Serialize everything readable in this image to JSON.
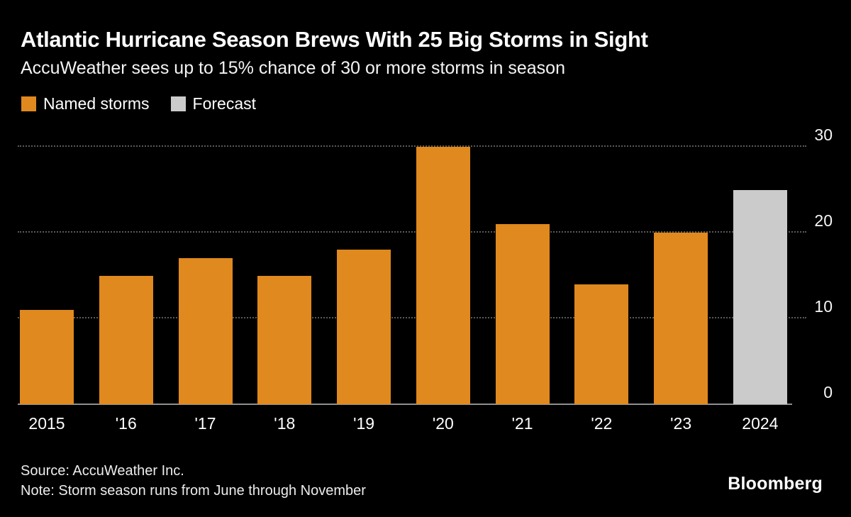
{
  "header": {
    "title": "Atlantic Hurricane Season Brews With 25 Big Storms in Sight",
    "subtitle": "AccuWeather sees up to 15% chance of 30 or more storms in season"
  },
  "legend": {
    "items": [
      {
        "label": "Named storms",
        "color": "#E0891E"
      },
      {
        "label": "Forecast",
        "color": "#CBCBCB"
      }
    ]
  },
  "chart_data": {
    "type": "bar",
    "title": "Atlantic Hurricane Season Brews With 25 Big Storms in Sight",
    "subtitle": "AccuWeather sees up to 15% chance of 30 or more storms in season",
    "xlabel": "",
    "ylabel": "",
    "categories": [
      "2015",
      "'16",
      "'17",
      "'18",
      "'19",
      "'20",
      "'21",
      "'22",
      "'23",
      "2024"
    ],
    "values": [
      11,
      15,
      17,
      15,
      18,
      30,
      21,
      14,
      20,
      25
    ],
    "bar_series": [
      "named",
      "named",
      "named",
      "named",
      "named",
      "named",
      "named",
      "named",
      "named",
      "forecast"
    ],
    "series_names": {
      "named": "Named storms",
      "forecast": "Forecast"
    },
    "colors": {
      "named": "#E0891E",
      "forecast": "#CBCBCB"
    },
    "ylim": [
      0,
      30
    ],
    "yticks": [
      0,
      10,
      20,
      30
    ],
    "grid": "dotted horizontal",
    "legend_position": "top-left",
    "y_axis_side": "right"
  },
  "footer": {
    "source": "Source: AccuWeather Inc.",
    "note": "Note: Storm season runs from June through November",
    "brand": "Bloomberg"
  }
}
